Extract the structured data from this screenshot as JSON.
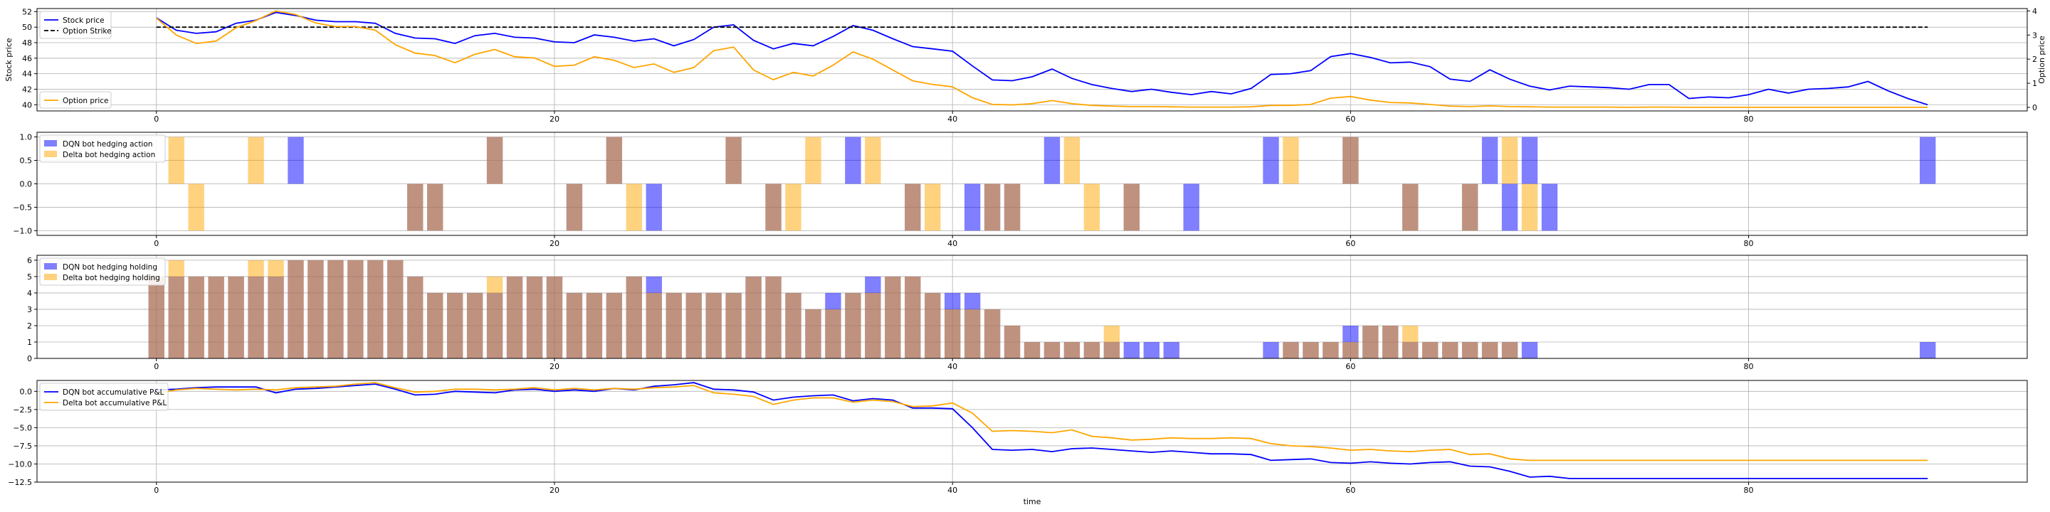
{
  "chart_data": [
    {
      "type": "line",
      "xlim": [
        -6,
        94
      ],
      "xticks": [
        0,
        20,
        40,
        60,
        80
      ],
      "ylabel": "Stock price",
      "ylim": [
        39.2,
        52.4
      ],
      "yticks": [
        40,
        42,
        44,
        46,
        48,
        50,
        52
      ],
      "ylabel_right": "Option price",
      "ylim_right": [
        -0.15,
        4.1
      ],
      "yticks_right": [
        0,
        1,
        2,
        3,
        4
      ],
      "grid": true,
      "legend": [
        {
          "position": "upper-left",
          "entries": [
            "Stock price",
            "Option Strike"
          ]
        },
        {
          "position": "lower-left",
          "entries": [
            "Option price"
          ]
        }
      ],
      "series": [
        {
          "name": "Stock price",
          "axis": "left",
          "color": "#0000ff",
          "style": "solid",
          "values": [
            51.2,
            49.6,
            49.2,
            49.4,
            50.5,
            50.9,
            51.9,
            51.5,
            50.9,
            50.7,
            50.7,
            50.5,
            49.2,
            48.6,
            48.5,
            47.9,
            48.9,
            49.2,
            48.7,
            48.6,
            48.1,
            48.0,
            49.0,
            48.7,
            48.2,
            48.5,
            47.6,
            48.4,
            50.0,
            50.3,
            48.3,
            47.2,
            47.9,
            47.6,
            48.8,
            50.2,
            49.6,
            48.5,
            47.5,
            47.2,
            46.9,
            45.0,
            43.2,
            43.1,
            43.6,
            44.6,
            43.4,
            42.6,
            42.1,
            41.7,
            42.0,
            41.6,
            41.3,
            41.7,
            41.4,
            42.1,
            43.9,
            44.0,
            44.4,
            46.2,
            46.6,
            46.1,
            45.4,
            45.5,
            44.9,
            43.3,
            43.0,
            44.5,
            43.3,
            42.4,
            41.9,
            42.4,
            42.3,
            42.2,
            42.0,
            42.6,
            42.6,
            40.8,
            41.0,
            40.9,
            41.3,
            42.0,
            41.5,
            42.0,
            42.1,
            42.3,
            43.0,
            41.8,
            40.8,
            40.0
          ]
        },
        {
          "name": "Option Strike",
          "axis": "left",
          "color": "#000000",
          "style": "dashed",
          "values": [
            50.0,
            50.0
          ]
        },
        {
          "name": "Option price",
          "axis": "right",
          "color": "#ffa500",
          "style": "solid",
          "values": [
            3.7,
            3.0,
            2.65,
            2.75,
            3.3,
            3.6,
            4.0,
            3.85,
            3.5,
            3.35,
            3.35,
            3.2,
            2.6,
            2.25,
            2.15,
            1.85,
            2.2,
            2.4,
            2.1,
            2.05,
            1.7,
            1.75,
            2.1,
            1.95,
            1.65,
            1.8,
            1.45,
            1.65,
            2.35,
            2.5,
            1.55,
            1.15,
            1.45,
            1.3,
            1.75,
            2.3,
            2.0,
            1.55,
            1.1,
            0.95,
            0.85,
            0.4,
            0.12,
            0.1,
            0.15,
            0.28,
            0.15,
            0.08,
            0.05,
            0.03,
            0.03,
            0.02,
            0.01,
            0.01,
            0.01,
            0.02,
            0.08,
            0.08,
            0.12,
            0.38,
            0.45,
            0.3,
            0.2,
            0.18,
            0.12,
            0.05,
            0.03,
            0.06,
            0.03,
            0.02,
            0.01,
            0.01,
            0.01,
            0.01,
            0.0,
            0.01,
            0.01,
            0.0,
            0.0,
            0.0,
            0.0,
            0.0,
            0.0,
            0.0,
            0.0,
            0.0,
            0.0,
            0.0,
            0.0,
            0.0
          ]
        }
      ]
    },
    {
      "type": "bar",
      "xlim": [
        -6,
        94
      ],
      "xticks": [
        0,
        20,
        40,
        60,
        80
      ],
      "ylim": [
        -1.1,
        1.1
      ],
      "yticks": [
        -1.0,
        -0.5,
        0.0,
        0.5,
        1.0
      ],
      "grid": true,
      "legend": {
        "position": "upper-left",
        "entries": [
          "DQN bot hedging action",
          "Delta bot hedging action"
        ]
      },
      "series": [
        {
          "name": "DQN bot hedging action",
          "color": "#0000ff",
          "alpha": 0.5,
          "x": [
            7,
            13,
            14,
            17,
            21,
            23,
            25,
            29,
            31,
            35,
            38,
            41,
            42,
            43,
            45,
            49,
            52,
            56,
            60,
            63,
            66,
            67,
            68,
            69,
            70,
            89
          ],
          "values": [
            1,
            -1,
            -1,
            1,
            -1,
            1,
            -1,
            1,
            -1,
            1,
            -1,
            -1,
            -1,
            -1,
            1,
            -1,
            -1,
            1,
            1,
            -1,
            -1,
            1,
            -1,
            1,
            -1,
            1
          ]
        },
        {
          "name": "Delta bot hedging action",
          "color": "#ffa500",
          "alpha": 0.5,
          "x": [
            1,
            2,
            5,
            13,
            14,
            17,
            21,
            23,
            24,
            29,
            31,
            32,
            33,
            36,
            38,
            39,
            42,
            43,
            46,
            47,
            49,
            57,
            60,
            63,
            66,
            68,
            69
          ],
          "values": [
            1,
            -1,
            1,
            -1,
            -1,
            1,
            -1,
            1,
            -1,
            1,
            -1,
            -1,
            1,
            1,
            -1,
            -1,
            -1,
            -1,
            1,
            -1,
            -1,
            1,
            1,
            -1,
            -1,
            1,
            -1
          ]
        }
      ]
    },
    {
      "type": "bar",
      "xlim": [
        -6,
        94
      ],
      "xticks": [
        0,
        20,
        40,
        60,
        80
      ],
      "ylim": [
        0,
        6.3
      ],
      "yticks": [
        0,
        1,
        2,
        3,
        4,
        5,
        6
      ],
      "grid": true,
      "legend": {
        "position": "upper-left",
        "entries": [
          "DQN bot hedging holding",
          "Delta bot hedging holding"
        ]
      },
      "series": [
        {
          "name": "DQN bot hedging holding",
          "color": "#0000ff",
          "alpha": 0.5,
          "x": [
            0,
            1,
            2,
            3,
            4,
            5,
            6,
            7,
            8,
            9,
            10,
            11,
            12,
            13,
            14,
            15,
            16,
            17,
            18,
            19,
            20,
            21,
            22,
            23,
            24,
            25,
            26,
            27,
            28,
            29,
            30,
            31,
            32,
            33,
            34,
            35,
            36,
            37,
            38,
            39,
            40,
            41,
            42,
            43,
            44,
            45,
            46,
            47,
            48,
            49,
            50,
            51,
            56,
            57,
            58,
            59,
            60,
            61,
            62,
            63,
            64,
            65,
            66,
            67,
            68,
            69,
            89
          ],
          "values": [
            5,
            5,
            5,
            5,
            5,
            5,
            5,
            6,
            6,
            6,
            6,
            6,
            6,
            5,
            4,
            4,
            4,
            4,
            5,
            5,
            5,
            4,
            4,
            4,
            5,
            5,
            4,
            4,
            4,
            4,
            5,
            5,
            4,
            3,
            4,
            4,
            5,
            5,
            5,
            4,
            4,
            4,
            3,
            2,
            1,
            1,
            1,
            1,
            1,
            1,
            1,
            1,
            1,
            1,
            1,
            1,
            2,
            2,
            2,
            1,
            1,
            1,
            1,
            1,
            1,
            1,
            1
          ]
        },
        {
          "name": "Delta bot hedging holding",
          "color": "#ffa500",
          "alpha": 0.5,
          "x": [
            0,
            1,
            2,
            3,
            4,
            5,
            6,
            7,
            8,
            9,
            10,
            11,
            12,
            13,
            14,
            15,
            16,
            17,
            18,
            19,
            20,
            21,
            22,
            23,
            24,
            25,
            26,
            27,
            28,
            29,
            30,
            31,
            32,
            33,
            34,
            35,
            36,
            37,
            38,
            39,
            40,
            41,
            42,
            43,
            44,
            45,
            46,
            47,
            48,
            57,
            58,
            59,
            60,
            61,
            62,
            63,
            64,
            65,
            66,
            67,
            68
          ],
          "values": [
            5,
            6,
            5,
            5,
            5,
            6,
            6,
            6,
            6,
            6,
            6,
            6,
            6,
            5,
            4,
            4,
            4,
            5,
            5,
            5,
            5,
            4,
            4,
            4,
            5,
            4,
            4,
            4,
            4,
            4,
            5,
            5,
            4,
            3,
            3,
            4,
            4,
            5,
            5,
            4,
            3,
            3,
            3,
            2,
            1,
            1,
            1,
            1,
            2,
            1,
            1,
            1,
            1,
            2,
            2,
            2,
            1,
            1,
            1,
            1,
            1
          ]
        }
      ]
    },
    {
      "type": "line",
      "xlim": [
        -6,
        94
      ],
      "xticks": [
        0,
        20,
        40,
        60,
        80
      ],
      "xlabel": "time",
      "ylim": [
        -12.5,
        1.5
      ],
      "yticks": [
        -12.5,
        -10.0,
        -7.5,
        -5.0,
        -2.5,
        0.0
      ],
      "grid": true,
      "legend": {
        "position": "upper-left",
        "entries": [
          "DQN bot accumulative P&L",
          "Delta bot accumulative P&L"
        ]
      },
      "series": [
        {
          "name": "DQN bot accumulative P&L",
          "color": "#0000ff",
          "values": [
            0.2,
            0.3,
            0.5,
            0.6,
            0.6,
            0.6,
            -0.2,
            0.3,
            0.4,
            0.6,
            0.8,
            1.0,
            0.3,
            -0.5,
            -0.4,
            0.0,
            -0.1,
            -0.2,
            0.2,
            0.3,
            0.0,
            0.2,
            0.0,
            0.4,
            0.2,
            0.7,
            0.9,
            1.2,
            0.3,
            0.2,
            -0.1,
            -1.2,
            -0.8,
            -0.6,
            -0.5,
            -1.3,
            -1.0,
            -1.2,
            -2.3,
            -2.3,
            -2.4,
            -5.0,
            -8.0,
            -8.1,
            -8.0,
            -8.3,
            -7.9,
            -7.8,
            -8.0,
            -8.2,
            -8.4,
            -8.2,
            -8.4,
            -8.6,
            -8.6,
            -8.7,
            -9.5,
            -9.4,
            -9.3,
            -9.8,
            -9.9,
            -9.7,
            -9.9,
            -10.0,
            -9.8,
            -9.7,
            -10.3,
            -10.4,
            -11.0,
            -11.8,
            -11.7,
            -12.0,
            -12.0,
            -12.0,
            -12.0,
            -12.0,
            -12.0,
            -12.0,
            -12.0,
            -12.0,
            -12.0,
            -12.0,
            -12.0,
            -12.0,
            -12.0,
            -12.0,
            -12.0,
            -12.0,
            -12.0,
            -12.0
          ]
        },
        {
          "name": "Delta bot accumulative P&L",
          "color": "#ffa500",
          "values": [
            -0.3,
            0.2,
            0.4,
            0.3,
            0.2,
            0.3,
            0.2,
            0.5,
            0.6,
            0.7,
            1.0,
            1.2,
            0.5,
            -0.1,
            0.0,
            0.3,
            0.3,
            0.2,
            0.3,
            0.5,
            0.2,
            0.4,
            0.2,
            0.4,
            0.3,
            0.5,
            0.6,
            0.8,
            -0.2,
            -0.4,
            -0.7,
            -1.8,
            -1.2,
            -0.9,
            -0.9,
            -1.5,
            -1.2,
            -1.4,
            -2.1,
            -2.0,
            -1.6,
            -3.0,
            -5.5,
            -5.4,
            -5.5,
            -5.7,
            -5.3,
            -6.2,
            -6.4,
            -6.7,
            -6.6,
            -6.4,
            -6.5,
            -6.5,
            -6.4,
            -6.5,
            -7.2,
            -7.5,
            -7.6,
            -7.8,
            -8.1,
            -8.0,
            -8.2,
            -8.3,
            -8.1,
            -8.0,
            -8.7,
            -8.6,
            -9.3,
            -9.5,
            -9.5,
            -9.5,
            -9.5,
            -9.5,
            -9.5,
            -9.5,
            -9.5,
            -9.5,
            -9.5,
            -9.5,
            -9.5,
            -9.5,
            -9.5,
            -9.5,
            -9.5,
            -9.5,
            -9.5,
            -9.5,
            -9.5,
            -9.5
          ]
        }
      ]
    }
  ]
}
